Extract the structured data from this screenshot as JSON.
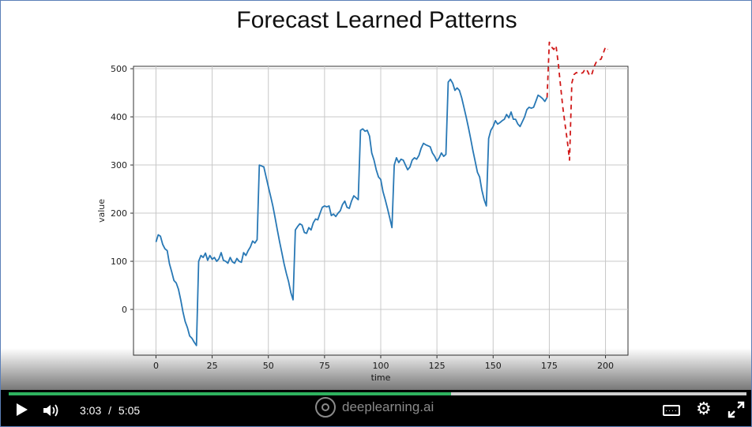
{
  "slide": {
    "title": "Forecast Learned Patterns"
  },
  "chart_data": {
    "type": "line",
    "title": "",
    "xlabel": "time",
    "ylabel": "value",
    "xlim": [
      -10,
      210
    ],
    "ylim": [
      -95,
      505
    ],
    "xticks": [
      0,
      25,
      50,
      75,
      100,
      125,
      150,
      175,
      200
    ],
    "yticks": [
      0,
      100,
      200,
      300,
      400,
      500
    ],
    "grid": true,
    "series": [
      {
        "color": "#2878b5",
        "points": [
          [
            0,
            140
          ],
          [
            1,
            155
          ],
          [
            2,
            152
          ],
          [
            3,
            135
          ],
          [
            4,
            126
          ],
          [
            5,
            122
          ],
          [
            6,
            95
          ],
          [
            7,
            78
          ],
          [
            8,
            60
          ],
          [
            9,
            55
          ],
          [
            10,
            42
          ],
          [
            11,
            20
          ],
          [
            12,
            -5
          ],
          [
            13,
            -25
          ],
          [
            14,
            -38
          ],
          [
            15,
            -55
          ],
          [
            16,
            -60
          ],
          [
            17,
            -68
          ],
          [
            18,
            -75
          ],
          [
            19,
            100
          ],
          [
            20,
            112
          ],
          [
            21,
            108
          ],
          [
            22,
            117
          ],
          [
            23,
            102
          ],
          [
            24,
            112
          ],
          [
            25,
            104
          ],
          [
            26,
            108
          ],
          [
            27,
            100
          ],
          [
            28,
            105
          ],
          [
            29,
            118
          ],
          [
            30,
            102
          ],
          [
            31,
            100
          ],
          [
            32,
            96
          ],
          [
            33,
            108
          ],
          [
            34,
            99
          ],
          [
            35,
            96
          ],
          [
            36,
            106
          ],
          [
            37,
            100
          ],
          [
            38,
            98
          ],
          [
            39,
            118
          ],
          [
            40,
            112
          ],
          [
            41,
            122
          ],
          [
            42,
            130
          ],
          [
            43,
            142
          ],
          [
            44,
            138
          ],
          [
            45,
            145
          ],
          [
            46,
            300
          ],
          [
            47,
            298
          ],
          [
            48,
            296
          ],
          [
            49,
            275
          ],
          [
            50,
            255
          ],
          [
            51,
            235
          ],
          [
            52,
            215
          ],
          [
            53,
            190
          ],
          [
            54,
            165
          ],
          [
            55,
            140
          ],
          [
            56,
            118
          ],
          [
            57,
            95
          ],
          [
            58,
            75
          ],
          [
            59,
            58
          ],
          [
            60,
            35
          ],
          [
            61,
            20
          ],
          [
            62,
            165
          ],
          [
            63,
            172
          ],
          [
            64,
            178
          ],
          [
            65,
            175
          ],
          [
            66,
            160
          ],
          [
            67,
            158
          ],
          [
            68,
            170
          ],
          [
            69,
            165
          ],
          [
            70,
            180
          ],
          [
            71,
            188
          ],
          [
            72,
            186
          ],
          [
            73,
            200
          ],
          [
            74,
            212
          ],
          [
            75,
            215
          ],
          [
            76,
            213
          ],
          [
            77,
            215
          ],
          [
            78,
            195
          ],
          [
            79,
            198
          ],
          [
            80,
            193
          ],
          [
            81,
            200
          ],
          [
            82,
            205
          ],
          [
            83,
            218
          ],
          [
            84,
            225
          ],
          [
            85,
            212
          ],
          [
            86,
            210
          ],
          [
            87,
            225
          ],
          [
            88,
            236
          ],
          [
            89,
            232
          ],
          [
            90,
            228
          ],
          [
            91,
            372
          ],
          [
            92,
            375
          ],
          [
            93,
            370
          ],
          [
            94,
            372
          ],
          [
            95,
            360
          ],
          [
            96,
            325
          ],
          [
            97,
            310
          ],
          [
            98,
            290
          ],
          [
            99,
            275
          ],
          [
            100,
            270
          ],
          [
            101,
            245
          ],
          [
            102,
            228
          ],
          [
            103,
            210
          ],
          [
            104,
            190
          ],
          [
            105,
            170
          ],
          [
            106,
            300
          ],
          [
            107,
            315
          ],
          [
            108,
            305
          ],
          [
            109,
            312
          ],
          [
            110,
            310
          ],
          [
            111,
            300
          ],
          [
            112,
            290
          ],
          [
            113,
            296
          ],
          [
            114,
            310
          ],
          [
            115,
            315
          ],
          [
            116,
            312
          ],
          [
            117,
            320
          ],
          [
            118,
            335
          ],
          [
            119,
            345
          ],
          [
            120,
            342
          ],
          [
            121,
            340
          ],
          [
            122,
            338
          ],
          [
            123,
            325
          ],
          [
            124,
            318
          ],
          [
            125,
            308
          ],
          [
            126,
            315
          ],
          [
            127,
            325
          ],
          [
            128,
            318
          ],
          [
            129,
            322
          ],
          [
            130,
            472
          ],
          [
            131,
            478
          ],
          [
            132,
            470
          ],
          [
            133,
            455
          ],
          [
            134,
            460
          ],
          [
            135,
            455
          ],
          [
            136,
            440
          ],
          [
            137,
            420
          ],
          [
            138,
            400
          ],
          [
            139,
            378
          ],
          [
            140,
            355
          ],
          [
            141,
            330
          ],
          [
            142,
            308
          ],
          [
            143,
            285
          ],
          [
            144,
            275
          ],
          [
            145,
            248
          ],
          [
            146,
            228
          ],
          [
            147,
            215
          ],
          [
            148,
            355
          ],
          [
            149,
            372
          ],
          [
            150,
            380
          ],
          [
            151,
            392
          ],
          [
            152,
            385
          ],
          [
            153,
            388
          ],
          [
            154,
            392
          ],
          [
            155,
            395
          ],
          [
            156,
            405
          ],
          [
            157,
            398
          ],
          [
            158,
            410
          ],
          [
            159,
            395
          ],
          [
            160,
            395
          ],
          [
            161,
            385
          ],
          [
            162,
            380
          ],
          [
            163,
            390
          ],
          [
            164,
            400
          ],
          [
            165,
            415
          ],
          [
            166,
            420
          ],
          [
            167,
            418
          ],
          [
            168,
            420
          ],
          [
            169,
            432
          ],
          [
            170,
            445
          ],
          [
            171,
            442
          ],
          [
            172,
            438
          ],
          [
            173,
            432
          ],
          [
            174,
            440
          ]
        ]
      },
      {
        "color": "#d01818",
        "style": "dashed",
        "points": [
          [
            174,
            440
          ],
          [
            175,
            555
          ],
          [
            176,
            545
          ],
          [
            177,
            540
          ],
          [
            178,
            548
          ],
          [
            179,
            510
          ],
          [
            180,
            465
          ],
          [
            181,
            420
          ],
          [
            182,
            385
          ],
          [
            183,
            350
          ],
          [
            184,
            310
          ],
          [
            185,
            470
          ],
          [
            186,
            488
          ],
          [
            187,
            492
          ],
          [
            188,
            490
          ],
          [
            189,
            490
          ],
          [
            190,
            492
          ],
          [
            191,
            500
          ],
          [
            192,
            495
          ],
          [
            193,
            485
          ],
          [
            194,
            490
          ],
          [
            195,
            505
          ],
          [
            196,
            515
          ],
          [
            197,
            518
          ],
          [
            198,
            520
          ],
          [
            199,
            532
          ],
          [
            200,
            545
          ],
          [
            201,
            540
          ]
        ]
      }
    ]
  },
  "player": {
    "time_current": "3:03",
    "time_separator": "/",
    "time_total": "5:05",
    "time_display": "3:03  /  5:05",
    "progress_fraction": 0.6,
    "brand": "deeplearning.ai",
    "accent_color": "#2eb35f"
  }
}
